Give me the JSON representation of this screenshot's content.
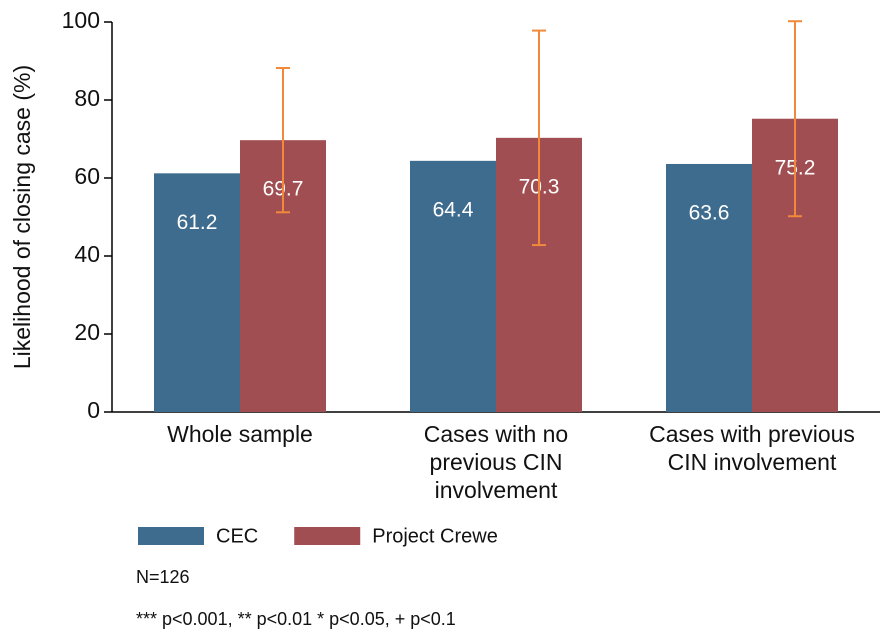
{
  "chart_data": {
    "type": "bar",
    "y_label": "Likelihood of closing case (%)",
    "categories": [
      [
        "Whole sample"
      ],
      [
        "Cases with no",
        "previous CIN",
        "involvement"
      ],
      [
        "Cases with previous",
        "CIN involvement"
      ]
    ],
    "series": [
      {
        "name": "CEC",
        "color": "#3e6c8e",
        "values": [
          61.2,
          64.4,
          63.6
        ]
      },
      {
        "name": "Project Crewe",
        "color": "#a04e52",
        "values": [
          69.7,
          70.3,
          75.2
        ],
        "errors": [
          18.5,
          27.5,
          25
        ],
        "error_color": "#f0893a"
      }
    ],
    "ylim": [
      0,
      100
    ],
    "yticks": [
      0,
      20,
      40,
      60,
      80,
      100
    ],
    "grid": false,
    "notes": [
      "N=126",
      "*** p<0.001, ** p<0.01 * p<0.05, + p<0.1"
    ]
  }
}
